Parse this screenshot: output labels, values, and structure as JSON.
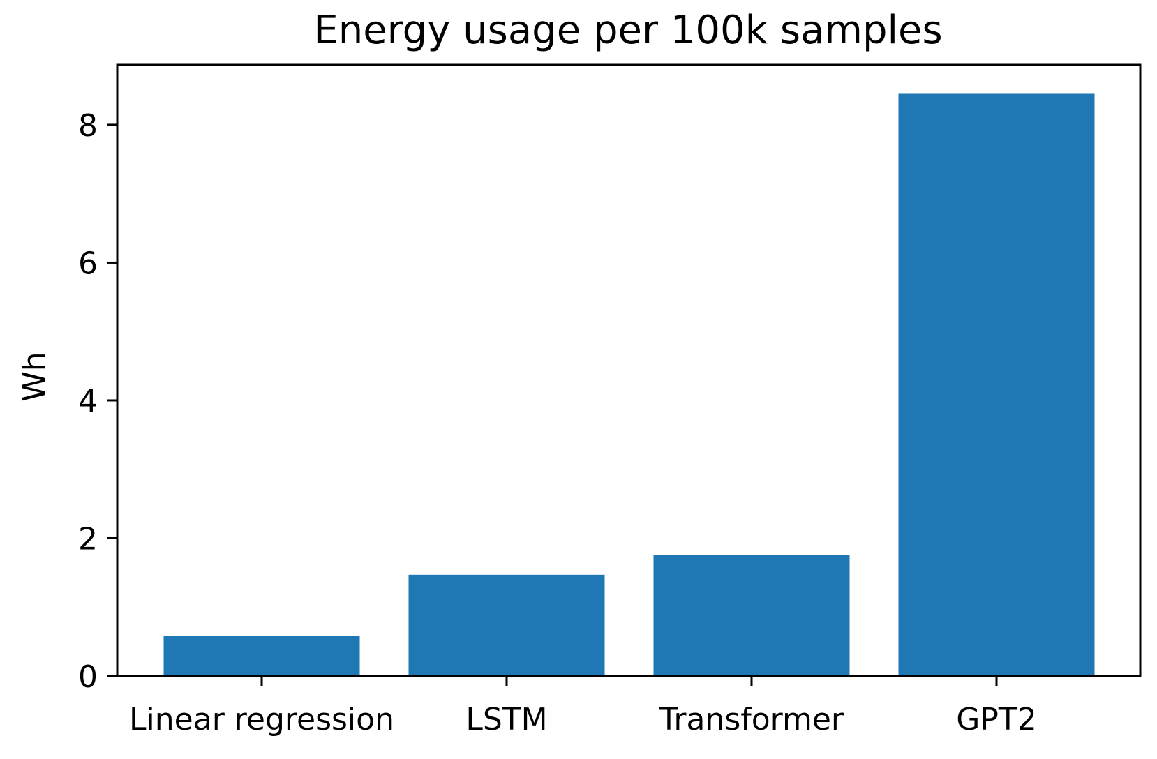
{
  "chart_data": {
    "type": "bar",
    "title": "Energy usage per 100k samples",
    "xlabel": "",
    "ylabel": "Wh",
    "categories": [
      "Linear regression",
      "LSTM",
      "Transformer",
      "GPT2"
    ],
    "values": [
      0.58,
      1.47,
      1.76,
      8.45
    ],
    "ylim": [
      0,
      8.87
    ],
    "yticks": [
      0,
      2,
      4,
      6,
      8
    ],
    "grid": false,
    "legend": "none",
    "bar_color": "#1f77b4"
  }
}
